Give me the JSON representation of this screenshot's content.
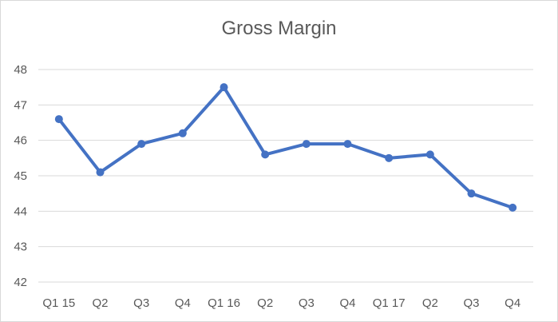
{
  "chart_data": {
    "type": "line",
    "title": "Gross Margin",
    "xlabel": "",
    "ylabel": "",
    "categories": [
      "Q1 15",
      "Q2",
      "Q3",
      "Q4",
      "Q1 16",
      "Q2",
      "Q3",
      "Q4",
      "Q1 17",
      "Q2",
      "Q3",
      "Q4"
    ],
    "series": [
      {
        "values": [
          46.6,
          45.1,
          45.9,
          46.2,
          47.5,
          45.6,
          45.9,
          45.9,
          45.5,
          45.6,
          44.5,
          44.1
        ],
        "color": "#4472c4"
      }
    ],
    "ylim": [
      42,
      48
    ],
    "yticks": [
      42,
      43,
      44,
      45,
      46,
      47,
      48
    ],
    "grid": true,
    "legend": "none",
    "colors": {
      "line": "#4472c4",
      "grid": "#d9d9d9",
      "text": "#595959"
    }
  }
}
